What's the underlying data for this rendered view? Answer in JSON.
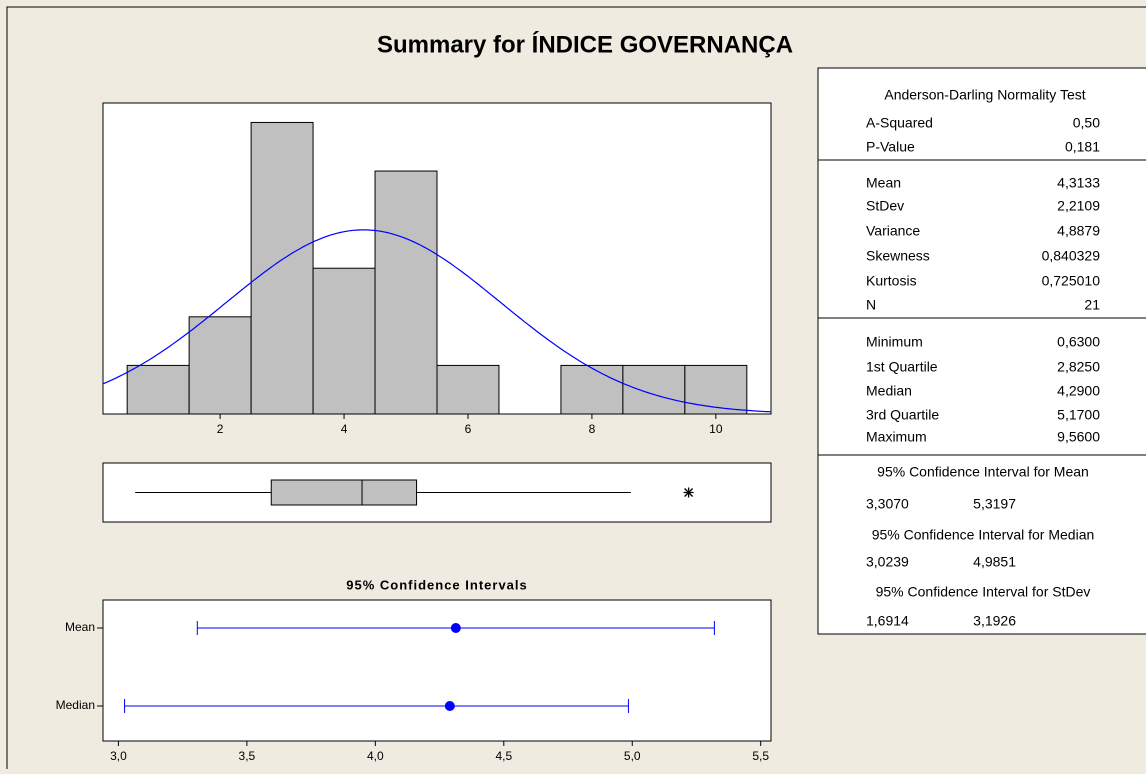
{
  "title": "Summary for ÍNDICE GOVERNANÇA",
  "chart_data": [
    {
      "type": "histogram",
      "bins": [
        0.5,
        1.5,
        2.5,
        3.5,
        4.5,
        5.5,
        6.5,
        7.5,
        8.5,
        9.5,
        10.5
      ],
      "counts": [
        1,
        2,
        6,
        3,
        5,
        1,
        0,
        1,
        1,
        1
      ],
      "color": "#c0c0c0",
      "fit_color": "#0000ff",
      "xlim": [
        0.11,
        10.89
      ],
      "ylim": [
        0,
        6.4
      ],
      "xticks": [
        2,
        4,
        6,
        8,
        10
      ]
    },
    {
      "type": "box",
      "min": 0.63,
      "q1": 2.825,
      "median": 4.29,
      "q3": 5.17,
      "whisker_high": 8.63,
      "outliers": [
        9.56
      ],
      "color": "#c0c0c0"
    },
    {
      "type": "interval",
      "title": "95% Confidence Intervals",
      "categories": [
        "Mean",
        "Median"
      ],
      "low": [
        3.307,
        3.0239
      ],
      "values": [
        4.3133,
        4.29
      ],
      "high": [
        5.3197,
        4.9851
      ],
      "color": "#0000ff",
      "xlim": [
        2.94,
        5.54
      ],
      "xticks": [
        {
          "value": 3.0,
          "label": "3,0"
        },
        {
          "value": 3.5,
          "label": "3,5"
        },
        {
          "value": 4.0,
          "label": "4,0"
        },
        {
          "value": 4.5,
          "label": "4,5"
        },
        {
          "value": 5.0,
          "label": "5,0"
        },
        {
          "value": 5.5,
          "label": "5,5"
        }
      ]
    }
  ],
  "stats": {
    "sections": [
      {
        "header": "Anderson-Darling Normality Test",
        "rows": [
          [
            "A-Squared",
            {
              "value": 0.5,
              "label": "0,50"
            }
          ],
          [
            "P-Value",
            {
              "value": 0.181,
              "label": "0,181"
            }
          ]
        ]
      },
      {
        "rows": [
          [
            "Mean",
            {
              "value": 4.3133,
              "label": "4,3133"
            }
          ],
          [
            "StDev",
            {
              "value": 2.2109,
              "label": "2,2109"
            }
          ],
          [
            "Variance",
            {
              "value": 4.8879,
              "label": "4,8879"
            }
          ],
          [
            "Skewness",
            {
              "value": 0.840329,
              "label": "0,840329"
            }
          ],
          [
            "Kurtosis",
            {
              "value": 0.72501,
              "label": "0,725010"
            }
          ],
          [
            "N",
            21
          ]
        ]
      },
      {
        "rows": [
          [
            "Minimum",
            {
              "value": 0.63,
              "label": "0,6300"
            }
          ],
          [
            "1st Quartile",
            {
              "value": 2.825,
              "label": "2,8250"
            }
          ],
          [
            "Median",
            {
              "value": 4.29,
              "label": "4,2900"
            }
          ],
          [
            "3rd Quartile",
            {
              "value": 5.17,
              "label": "5,1700"
            }
          ],
          [
            "Maximum",
            {
              "value": 9.56,
              "label": "9,5600"
            }
          ]
        ]
      },
      {
        "header": "95% Confidence Interval for Mean",
        "rows": [
          [
            {
              "value": 3.307,
              "label": "3,3070"
            },
            {
              "value": 5.3197,
              "label": "5,3197"
            }
          ]
        ]
      },
      {
        "header": "95% Confidence Interval for Median",
        "rows": [
          [
            {
              "value": 3.0239,
              "label": "3,0239"
            },
            {
              "value": 4.9851,
              "label": "4,9851"
            }
          ]
        ]
      },
      {
        "header": "95% Confidence Interval for StDev",
        "rows": [
          [
            {
              "value": 1.6914,
              "label": "1,6914"
            },
            {
              "value": 3.1926,
              "label": "3,1926"
            }
          ]
        ]
      }
    ]
  }
}
